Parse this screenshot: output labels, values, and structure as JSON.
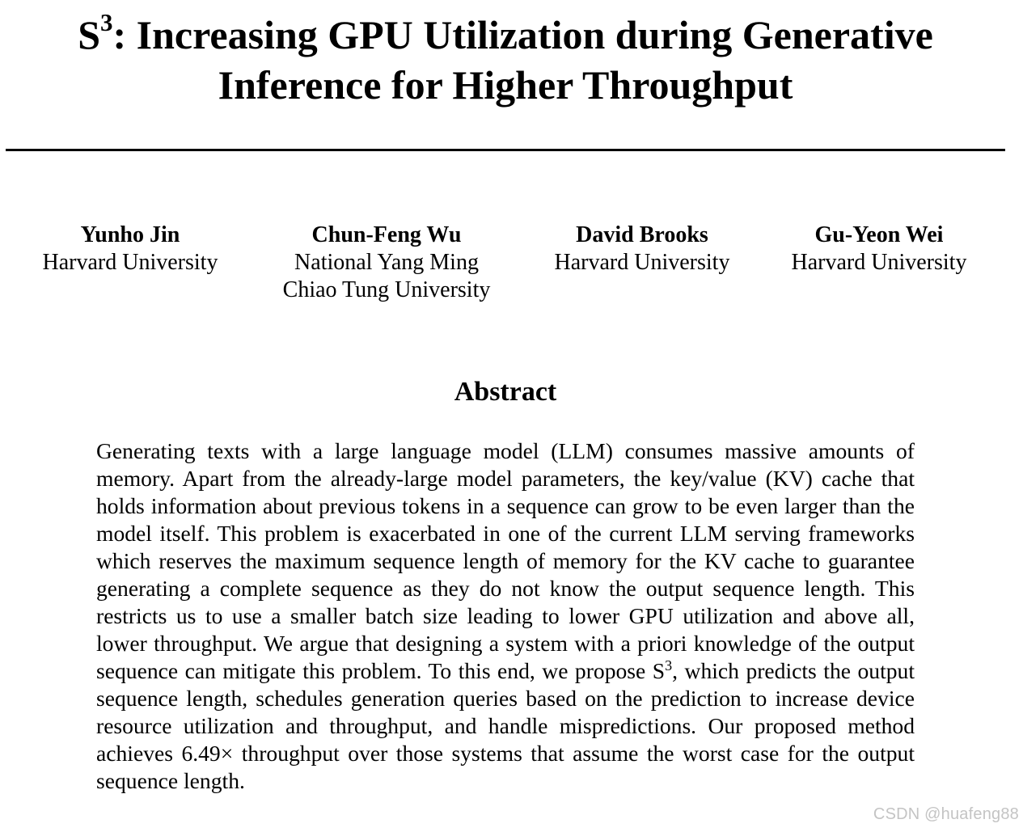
{
  "paper": {
    "title_symbol": "S",
    "title_superscript": "3",
    "title_line1_rest": ": Increasing GPU Utilization during Generative",
    "title_line2": "Inference for Higher Throughput"
  },
  "authors": [
    {
      "name": "Yunho Jin",
      "affiliation_line1": "Harvard University",
      "affiliation_line2": ""
    },
    {
      "name": "Chun-Feng Wu",
      "affiliation_line1": "National Yang Ming",
      "affiliation_line2": "Chiao Tung University"
    },
    {
      "name": "David Brooks",
      "affiliation_line1": "Harvard University",
      "affiliation_line2": ""
    },
    {
      "name": "Gu-Yeon Wei",
      "affiliation_line1": "Harvard University",
      "affiliation_line2": ""
    }
  ],
  "abstract": {
    "heading": "Abstract",
    "text_part1": "Generating texts with a large language model (LLM) consumes massive amounts of memory.  Apart from the already-large model parameters, the key/value (KV) cache that holds information about previous tokens in a sequence can grow to be even larger than the model itself.  This problem is exacerbated in one of the current LLM serving frameworks which reserves the maximum sequence length of memory for the KV cache to guarantee generating a complete sequence as they do not know the output sequence length. This restricts us to use a smaller batch size leading to lower GPU utilization and above all, lower throughput. We argue that designing a system with a priori knowledge of the output sequence can mitigate this problem.  To this end, we propose S",
    "inline_superscript": "3",
    "text_part2": ", which predicts the output sequence length, schedules generation queries based on the prediction to increase device resource utilization and throughput, and handle mispredictions.  Our proposed method achieves 6.49× throughput over those systems that assume the worst case for the output sequence length."
  },
  "watermark": {
    "text": "CSDN @huafeng88"
  }
}
